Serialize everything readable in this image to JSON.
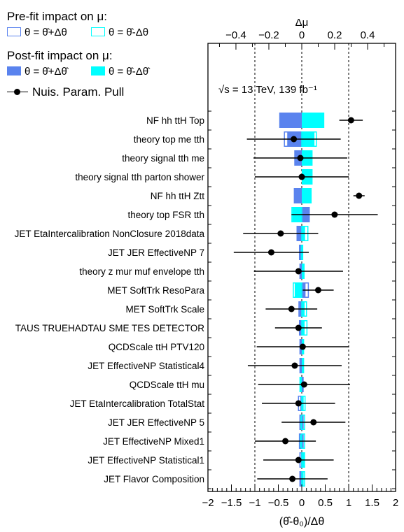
{
  "legend": {
    "prefit_title": "Pre-fit impact on μ:",
    "postfit_title": "Post-fit impact on μ:",
    "prefit_plus": "θ = θ̂+Δθ",
    "prefit_minus": "θ = θ̂-Δθ",
    "postfit_plus": "θ = θ̂+Δθ̂",
    "postfit_minus": "θ = θ̂-Δθ̂",
    "pull_label": "Nuis. Param. Pull"
  },
  "annotation": "√s = 13 TeV, 139 fb⁻¹",
  "colors": {
    "plus": "#5a83ee",
    "minus": "#00ffff",
    "pull": "#000000"
  },
  "chart_data": {
    "type": "bar",
    "orientation": "horizontal",
    "xlabel": "(θ̂-θ₀)/Δθ",
    "xlim": [
      -2,
      2
    ],
    "xticks": [
      "−2",
      "−1.5",
      "−1",
      "−0.5",
      "0",
      "0.5",
      "1",
      "1.5",
      "2"
    ],
    "top_axis_label": "Δμ",
    "top_xlim": [
      -0.57,
      0.57
    ],
    "top_xticks": [
      "−0.4",
      "−0.2",
      "0",
      "0.2",
      "0.4"
    ],
    "grid": "dashed lines at x = -1, 0, 1",
    "categories": [
      "NF hh ttH Top",
      "theory top me tth",
      "theory signal tth me",
      "theory signal tth parton shower",
      "NF hh ttH Ztt",
      "theory top FSR tth",
      "JET EtaIntercalibration NonClosure 2018data",
      "JET JER EffectiveNP 7",
      "theory z mur muf envelope tth",
      "MET SoftTrk ResoPara",
      "MET SoftTrk Scale",
      "TAUS TRUEHADTAU SME TES DETECTOR",
      "QCDScale ttH PTV120",
      "JET EffectiveNP Statistical4",
      "QCDScale ttH mu",
      "JET EtaIntercalibration TotalStat",
      "JET JER EffectiveNP 5",
      "JET EffectiveNP Mixed1",
      "JET EffectiveNP Statistical1",
      "JET Flavor Composition"
    ],
    "series": [
      {
        "name": "θ = θ̂+Δθ",
        "values": [
          null,
          -0.37,
          null,
          null,
          null,
          0.16,
          -0.1,
          -0.03,
          null,
          0.14,
          -0.06,
          -0.04,
          null,
          null,
          null,
          -0.07,
          -0.04,
          -0.05,
          -0.04,
          -0.04
        ]
      },
      {
        "name": "θ = θ̂-Δθ",
        "values": [
          null,
          0.31,
          null,
          null,
          null,
          -0.21,
          0.13,
          0.02,
          null,
          -0.18,
          0.1,
          0.11,
          null,
          null,
          null,
          0.07,
          0.06,
          0.06,
          0.06,
          0.06
        ]
      },
      {
        "name": "θ = θ̂+Δθ̂",
        "values": [
          -0.48,
          -0.31,
          -0.16,
          null,
          -0.17,
          0.15,
          -0.11,
          -0.06,
          -0.05,
          0.08,
          -0.05,
          -0.06,
          -0.05,
          -0.05,
          0.04,
          -0.03,
          0.04,
          0.04,
          -0.02,
          -0.03
        ]
      },
      {
        "name": "θ = θ̂-Δθ̂",
        "values": [
          0.48,
          0.27,
          0.23,
          0.23,
          0.21,
          -0.2,
          0.07,
          -0.04,
          0.06,
          -0.15,
          0.06,
          0.06,
          0.05,
          0.05,
          -0.05,
          0.04,
          -0.04,
          -0.05,
          0.05,
          0.04
        ]
      },
      {
        "name": "Nuis. Param. Pull",
        "values": [
          1.05,
          -0.17,
          -0.03,
          0.0,
          1.22,
          0.7,
          -0.45,
          -0.65,
          -0.07,
          0.35,
          -0.22,
          -0.07,
          0.02,
          -0.15,
          0.05,
          -0.07,
          0.25,
          -0.35,
          -0.07,
          -0.2
        ],
        "err_low": [
          0.25,
          1.0,
          1.0,
          1.0,
          0.12,
          0.92,
          0.8,
          0.8,
          0.95,
          0.33,
          0.55,
          0.5,
          0.98,
          1.0,
          0.98,
          0.78,
          0.68,
          0.65,
          0.75,
          0.75
        ],
        "err_high": [
          0.25,
          1.0,
          1.0,
          1.0,
          0.12,
          0.92,
          0.8,
          0.8,
          0.95,
          0.33,
          0.55,
          0.5,
          0.98,
          1.0,
          0.98,
          0.78,
          0.68,
          0.65,
          0.75,
          0.75
        ]
      }
    ]
  }
}
